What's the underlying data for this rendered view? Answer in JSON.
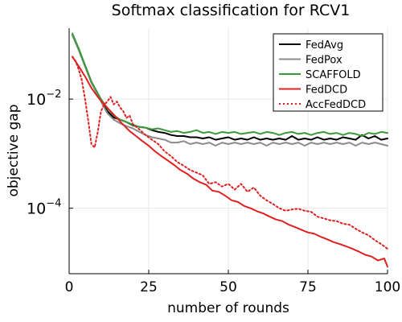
{
  "chart_data": {
    "type": "line",
    "title": "Softmax classification for RCV1",
    "xlabel": "number of rounds",
    "ylabel": "objective gap",
    "xlim": [
      0,
      100
    ],
    "ylim_log10": [
      -5.2,
      -0.7
    ],
    "y_scale": "log",
    "x_ticks": [
      0,
      25,
      50,
      75,
      100
    ],
    "y_ticks": [
      {
        "base": "10",
        "exp": "−2",
        "value": 0.01
      },
      {
        "base": "10",
        "exp": "−4",
        "value": 0.0001
      }
    ],
    "grid": true,
    "legend_position": "top-right",
    "series": [
      {
        "name": "FedAvg",
        "color": "#000000",
        "dash": "solid",
        "points": [
          [
            1,
            0.15
          ],
          [
            3,
            0.08
          ],
          [
            5,
            0.04
          ],
          [
            7,
            0.02
          ],
          [
            10,
            0.0095
          ],
          [
            12,
            0.006
          ],
          [
            14,
            0.0046
          ],
          [
            16,
            0.0042
          ],
          [
            18,
            0.0038
          ],
          [
            20,
            0.0033
          ],
          [
            22,
            0.0031
          ],
          [
            24,
            0.003
          ],
          [
            26,
            0.0027
          ],
          [
            28,
            0.0025
          ],
          [
            30,
            0.0024
          ],
          [
            32,
            0.0022
          ],
          [
            34,
            0.0021
          ],
          [
            36,
            0.0021
          ],
          [
            38,
            0.002
          ],
          [
            40,
            0.002
          ],
          [
            42,
            0.0019
          ],
          [
            44,
            0.002
          ],
          [
            46,
            0.0018
          ],
          [
            48,
            0.0019
          ],
          [
            50,
            0.002
          ],
          [
            52,
            0.0018
          ],
          [
            54,
            0.0019
          ],
          [
            56,
            0.0018
          ],
          [
            58,
            0.002
          ],
          [
            60,
            0.0018
          ],
          [
            62,
            0.0019
          ],
          [
            64,
            0.0018
          ],
          [
            66,
            0.0019
          ],
          [
            68,
            0.0018
          ],
          [
            70,
            0.0021
          ],
          [
            72,
            0.0018
          ],
          [
            74,
            0.0019
          ],
          [
            76,
            0.0018
          ],
          [
            78,
            0.002
          ],
          [
            80,
            0.0018
          ],
          [
            82,
            0.0019
          ],
          [
            84,
            0.0018
          ],
          [
            86,
            0.002
          ],
          [
            88,
            0.0019
          ],
          [
            90,
            0.0018
          ],
          [
            92,
            0.0022
          ],
          [
            94,
            0.0019
          ],
          [
            96,
            0.0021
          ],
          [
            98,
            0.0018
          ],
          [
            100,
            0.0019
          ]
        ]
      },
      {
        "name": "FedPox",
        "color": "#8c8c8c",
        "dash": "solid",
        "points": [
          [
            1,
            0.15
          ],
          [
            3,
            0.08
          ],
          [
            5,
            0.04
          ],
          [
            7,
            0.02
          ],
          [
            10,
            0.009
          ],
          [
            12,
            0.0055
          ],
          [
            14,
            0.0042
          ],
          [
            16,
            0.0036
          ],
          [
            18,
            0.0032
          ],
          [
            20,
            0.0029
          ],
          [
            22,
            0.0025
          ],
          [
            24,
            0.0022
          ],
          [
            26,
            0.002
          ],
          [
            28,
            0.0019
          ],
          [
            30,
            0.0018
          ],
          [
            32,
            0.0016
          ],
          [
            34,
            0.0016
          ],
          [
            36,
            0.0017
          ],
          [
            38,
            0.0015
          ],
          [
            40,
            0.0016
          ],
          [
            42,
            0.0015
          ],
          [
            44,
            0.0016
          ],
          [
            46,
            0.0014
          ],
          [
            48,
            0.0016
          ],
          [
            50,
            0.0015
          ],
          [
            52,
            0.0016
          ],
          [
            54,
            0.0015
          ],
          [
            56,
            0.0016
          ],
          [
            58,
            0.0015
          ],
          [
            60,
            0.0016
          ],
          [
            62,
            0.0014
          ],
          [
            64,
            0.0016
          ],
          [
            66,
            0.0015
          ],
          [
            68,
            0.0016
          ],
          [
            70,
            0.0015
          ],
          [
            72,
            0.0016
          ],
          [
            74,
            0.0014
          ],
          [
            76,
            0.0016
          ],
          [
            78,
            0.0015
          ],
          [
            80,
            0.0016
          ],
          [
            82,
            0.0015
          ],
          [
            84,
            0.0016
          ],
          [
            86,
            0.0015
          ],
          [
            88,
            0.0016
          ],
          [
            90,
            0.0014
          ],
          [
            92,
            0.0016
          ],
          [
            94,
            0.0015
          ],
          [
            96,
            0.0016
          ],
          [
            98,
            0.0015
          ],
          [
            100,
            0.0014
          ]
        ]
      },
      {
        "name": "SCAFFOLD",
        "color": "#3a9a3a",
        "dash": "solid",
        "points": [
          [
            1,
            0.16
          ],
          [
            3,
            0.085
          ],
          [
            5,
            0.042
          ],
          [
            7,
            0.021
          ],
          [
            10,
            0.01
          ],
          [
            12,
            0.0068
          ],
          [
            14,
            0.005
          ],
          [
            16,
            0.0042
          ],
          [
            18,
            0.0038
          ],
          [
            20,
            0.0034
          ],
          [
            22,
            0.0031
          ],
          [
            24,
            0.003
          ],
          [
            26,
            0.0028
          ],
          [
            28,
            0.0029
          ],
          [
            30,
            0.0027
          ],
          [
            32,
            0.0025
          ],
          [
            34,
            0.0026
          ],
          [
            36,
            0.0024
          ],
          [
            38,
            0.0025
          ],
          [
            40,
            0.0027
          ],
          [
            42,
            0.0024
          ],
          [
            44,
            0.0025
          ],
          [
            46,
            0.0023
          ],
          [
            48,
            0.0025
          ],
          [
            50,
            0.0024
          ],
          [
            52,
            0.0025
          ],
          [
            54,
            0.0023
          ],
          [
            56,
            0.0024
          ],
          [
            58,
            0.0025
          ],
          [
            60,
            0.0023
          ],
          [
            62,
            0.0025
          ],
          [
            64,
            0.0024
          ],
          [
            66,
            0.0022
          ],
          [
            68,
            0.0024
          ],
          [
            70,
            0.0025
          ],
          [
            72,
            0.0023
          ],
          [
            74,
            0.0024
          ],
          [
            76,
            0.0022
          ],
          [
            78,
            0.0024
          ],
          [
            80,
            0.0025
          ],
          [
            82,
            0.0023
          ],
          [
            84,
            0.0024
          ],
          [
            86,
            0.0022
          ],
          [
            88,
            0.0024
          ],
          [
            90,
            0.0023
          ],
          [
            92,
            0.0021
          ],
          [
            94,
            0.0024
          ],
          [
            96,
            0.0023
          ],
          [
            98,
            0.0025
          ],
          [
            100,
            0.0024
          ]
        ]
      },
      {
        "name": "FedDCD",
        "color": "#e02020",
        "dash": "solid",
        "points": [
          [
            1,
            0.06
          ],
          [
            3,
            0.04
          ],
          [
            5,
            0.026
          ],
          [
            7,
            0.016
          ],
          [
            9,
            0.011
          ],
          [
            11,
            0.008
          ],
          [
            13,
            0.006
          ],
          [
            15,
            0.0045
          ],
          [
            17,
            0.0034
          ],
          [
            19,
            0.0026
          ],
          [
            21,
            0.0021
          ],
          [
            23,
            0.0017
          ],
          [
            25,
            0.0014
          ],
          [
            27,
            0.0011
          ],
          [
            29,
            0.0009
          ],
          [
            31,
            0.00075
          ],
          [
            33,
            0.00062
          ],
          [
            35,
            0.0005
          ],
          [
            37,
            0.00043
          ],
          [
            39,
            0.00035
          ],
          [
            41,
            0.0003
          ],
          [
            43,
            0.00027
          ],
          [
            45,
            0.00021
          ],
          [
            47,
            0.0002
          ],
          [
            49,
            0.00017
          ],
          [
            51,
            0.00014
          ],
          [
            53,
            0.00013
          ],
          [
            55,
            0.00011
          ],
          [
            57,
            0.0001
          ],
          [
            59,
            8.8e-05
          ],
          [
            61,
            8e-05
          ],
          [
            63,
            7e-05
          ],
          [
            65,
            6.2e-05
          ],
          [
            67,
            5.8e-05
          ],
          [
            69,
            5e-05
          ],
          [
            71,
            4.5e-05
          ],
          [
            73,
            4e-05
          ],
          [
            75,
            3.6e-05
          ],
          [
            77,
            3.4e-05
          ],
          [
            79,
            3e-05
          ],
          [
            81,
            2.7e-05
          ],
          [
            83,
            2.4e-05
          ],
          [
            85,
            2.2e-05
          ],
          [
            87,
            2e-05
          ],
          [
            89,
            1.8e-05
          ],
          [
            91,
            1.6e-05
          ],
          [
            93,
            1.4e-05
          ],
          [
            95,
            1.3e-05
          ],
          [
            97,
            1.1e-05
          ],
          [
            99,
            1.2e-05
          ],
          [
            100,
            8.5e-06
          ]
        ]
      },
      {
        "name": "AccFedDCD",
        "color": "#e02020",
        "dash": "dotted",
        "points": [
          [
            1,
            0.06
          ],
          [
            2,
            0.05
          ],
          [
            3,
            0.035
          ],
          [
            4,
            0.022
          ],
          [
            5,
            0.01
          ],
          [
            6,
            0.004
          ],
          [
            7,
            0.0015
          ],
          [
            8,
            0.0013
          ],
          [
            9,
            0.0025
          ],
          [
            10,
            0.006
          ],
          [
            11,
            0.008
          ],
          [
            12,
            0.009
          ],
          [
            13,
            0.011
          ],
          [
            14,
            0.008
          ],
          [
            15,
            0.009
          ],
          [
            16,
            0.007
          ],
          [
            17,
            0.006
          ],
          [
            18,
            0.0045
          ],
          [
            19,
            0.005
          ],
          [
            20,
            0.0035
          ],
          [
            22,
            0.0028
          ],
          [
            24,
            0.0022
          ],
          [
            26,
            0.0018
          ],
          [
            28,
            0.0015
          ],
          [
            30,
            0.0011
          ],
          [
            32,
            0.0009
          ],
          [
            34,
            0.0007
          ],
          [
            36,
            0.0006
          ],
          [
            38,
            0.0005
          ],
          [
            40,
            0.00045
          ],
          [
            42,
            0.0004
          ],
          [
            44,
            0.00028
          ],
          [
            46,
            0.0003
          ],
          [
            48,
            0.00025
          ],
          [
            50,
            0.00028
          ],
          [
            52,
            0.00022
          ],
          [
            54,
            0.00028
          ],
          [
            56,
            0.0002
          ],
          [
            58,
            0.00024
          ],
          [
            60,
            0.00017
          ],
          [
            62,
            0.00014
          ],
          [
            64,
            0.00012
          ],
          [
            66,
            0.0001
          ],
          [
            68,
            9e-05
          ],
          [
            70,
            9.5e-05
          ],
          [
            72,
            9.8e-05
          ],
          [
            74,
            9e-05
          ],
          [
            76,
            8.6e-05
          ],
          [
            78,
            7e-05
          ],
          [
            80,
            6.5e-05
          ],
          [
            82,
            6e-05
          ],
          [
            84,
            5.8e-05
          ],
          [
            86,
            5.2e-05
          ],
          [
            88,
            5e-05
          ],
          [
            90,
            4.2e-05
          ],
          [
            92,
            3.6e-05
          ],
          [
            94,
            3.2e-05
          ],
          [
            96,
            2.6e-05
          ],
          [
            98,
            2.2e-05
          ],
          [
            100,
            1.8e-05
          ]
        ]
      }
    ]
  }
}
